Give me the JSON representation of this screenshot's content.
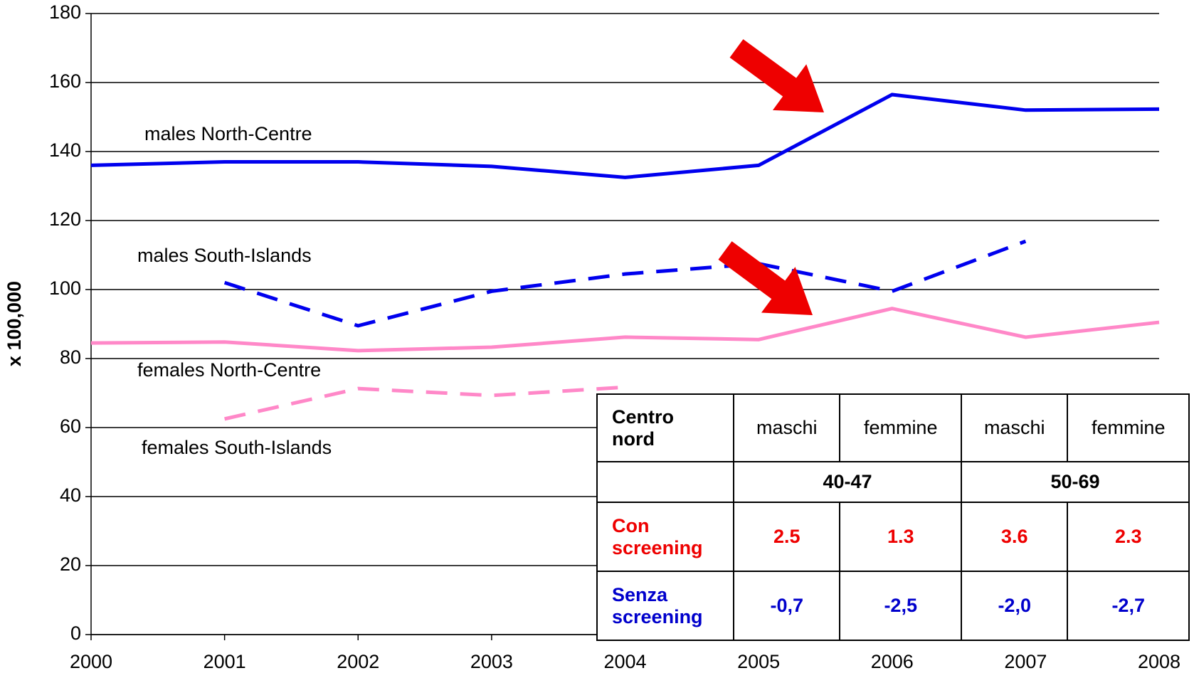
{
  "chart_data": {
    "type": "line",
    "ylabel": "x 100,000",
    "x": [
      2000,
      2001,
      2002,
      2003,
      2004,
      2005,
      2006,
      2007,
      2008
    ],
    "xlim": [
      2000,
      2008
    ],
    "xticks": [
      2000,
      2001,
      2002,
      2003,
      2004,
      2005,
      2006,
      2007,
      2008
    ],
    "ylim": [
      0,
      180
    ],
    "yticks": [
      0,
      20,
      40,
      60,
      80,
      100,
      120,
      140,
      160,
      180
    ],
    "grid": true,
    "series": [
      {
        "name": "males North-Centre",
        "color": "#0000ee",
        "dash": false,
        "values": [
          136,
          137,
          137,
          135.7,
          132.5,
          136,
          156.5,
          152,
          152.3
        ]
      },
      {
        "name": "males South-Islands",
        "color": "#0000ee",
        "dash": true,
        "values": [
          null,
          102,
          89.5,
          99.5,
          104.5,
          107.5,
          99.5,
          114,
          null
        ]
      },
      {
        "name": "females North-Centre",
        "color": "#ff88c8",
        "dash": false,
        "values": [
          84.5,
          84.8,
          82.3,
          83.3,
          86.2,
          85.5,
          94.5,
          86.2,
          90.5
        ]
      },
      {
        "name": "females South-Islands",
        "color": "#ff88c8",
        "dash": true,
        "values": [
          null,
          62.5,
          71.3,
          69.3,
          71.7,
          null,
          null,
          null,
          null
        ]
      }
    ]
  },
  "table": {
    "header": [
      "Centro nord",
      "maschi",
      "femmine",
      "maschi",
      "femmine"
    ],
    "groups": [
      "40-47",
      "50-69"
    ],
    "rows": [
      {
        "label": "Con screening",
        "color": "#ee0000",
        "values": [
          "2.5",
          "1.3",
          "3.6",
          "2.3"
        ]
      },
      {
        "label": "Senza screening",
        "color": "#0000cc",
        "values": [
          "-0,7",
          "-2,5",
          "-2,0",
          "-2,7"
        ]
      }
    ]
  }
}
